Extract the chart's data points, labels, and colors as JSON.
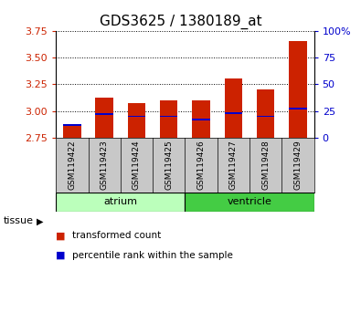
{
  "title": "GDS3625 / 1380189_at",
  "samples": [
    "GSM119422",
    "GSM119423",
    "GSM119424",
    "GSM119425",
    "GSM119426",
    "GSM119427",
    "GSM119428",
    "GSM119429"
  ],
  "bar_tops": [
    2.87,
    3.12,
    3.07,
    3.1,
    3.1,
    3.3,
    3.2,
    3.65
  ],
  "bar_bottom": 2.75,
  "blue_dots": [
    2.87,
    2.97,
    2.95,
    2.95,
    2.92,
    2.98,
    2.95,
    3.02
  ],
  "ylim_left": [
    2.75,
    3.75
  ],
  "ylim_right": [
    0,
    100
  ],
  "yticks_left": [
    2.75,
    3.0,
    3.25,
    3.5,
    3.75
  ],
  "yticks_right": [
    0,
    25,
    50,
    75,
    100
  ],
  "ytick_labels_right": [
    "0",
    "25",
    "50",
    "75",
    "100%"
  ],
  "tissue_groups": [
    {
      "label": "atrium",
      "indices": [
        0,
        1,
        2,
        3
      ],
      "color": "#bbffbb"
    },
    {
      "label": "ventricle",
      "indices": [
        4,
        5,
        6,
        7
      ],
      "color": "#44cc44"
    }
  ],
  "bar_color": "#cc2200",
  "dot_color": "#0000cc",
  "plot_bg": "#ffffff",
  "left_tick_color": "#cc2200",
  "right_tick_color": "#0000cc",
  "bar_width": 0.55,
  "legend_items": [
    {
      "color": "#cc2200",
      "label": "transformed count"
    },
    {
      "color": "#0000cc",
      "label": "percentile rank within the sample"
    }
  ],
  "label_area_color": "#c8c8c8",
  "tissue_label": "tissue"
}
